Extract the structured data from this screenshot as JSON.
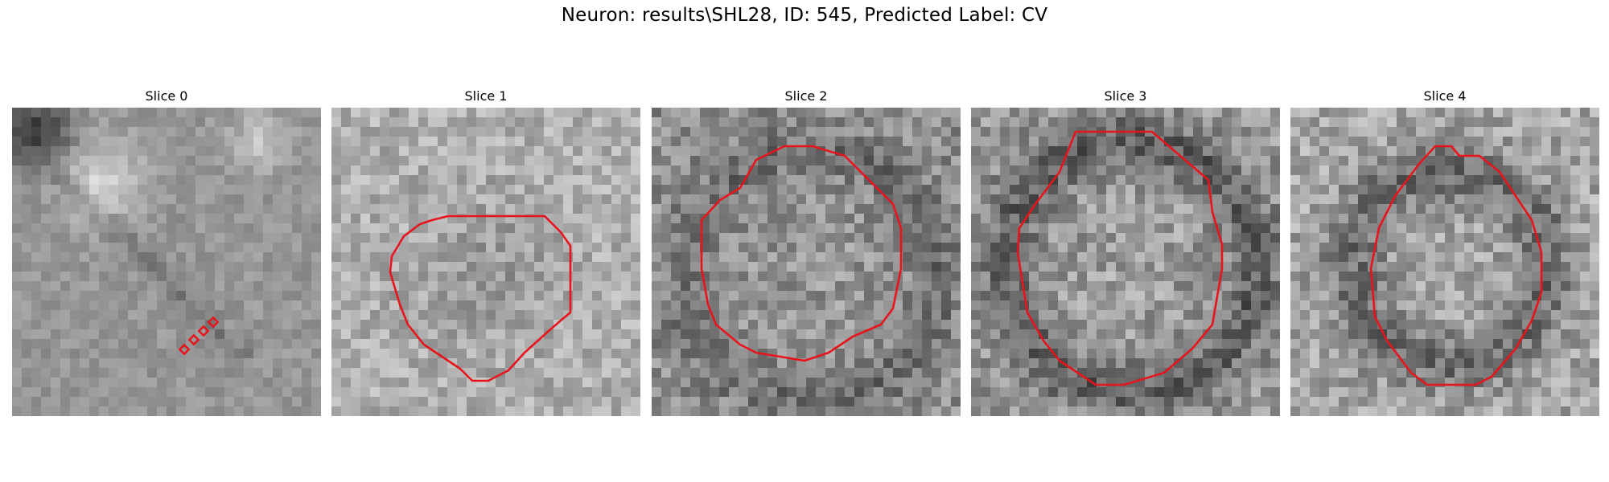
{
  "figure": {
    "title": "Neuron: results\\SHL28, ID: 545, Predicted Label: CV"
  },
  "contour_color": "#e8141c",
  "panels": [
    {
      "title": "Slice 0"
    },
    {
      "title": "Slice 1"
    },
    {
      "title": "Slice 2"
    },
    {
      "title": "Slice 3"
    },
    {
      "title": "Slice 4"
    }
  ]
}
